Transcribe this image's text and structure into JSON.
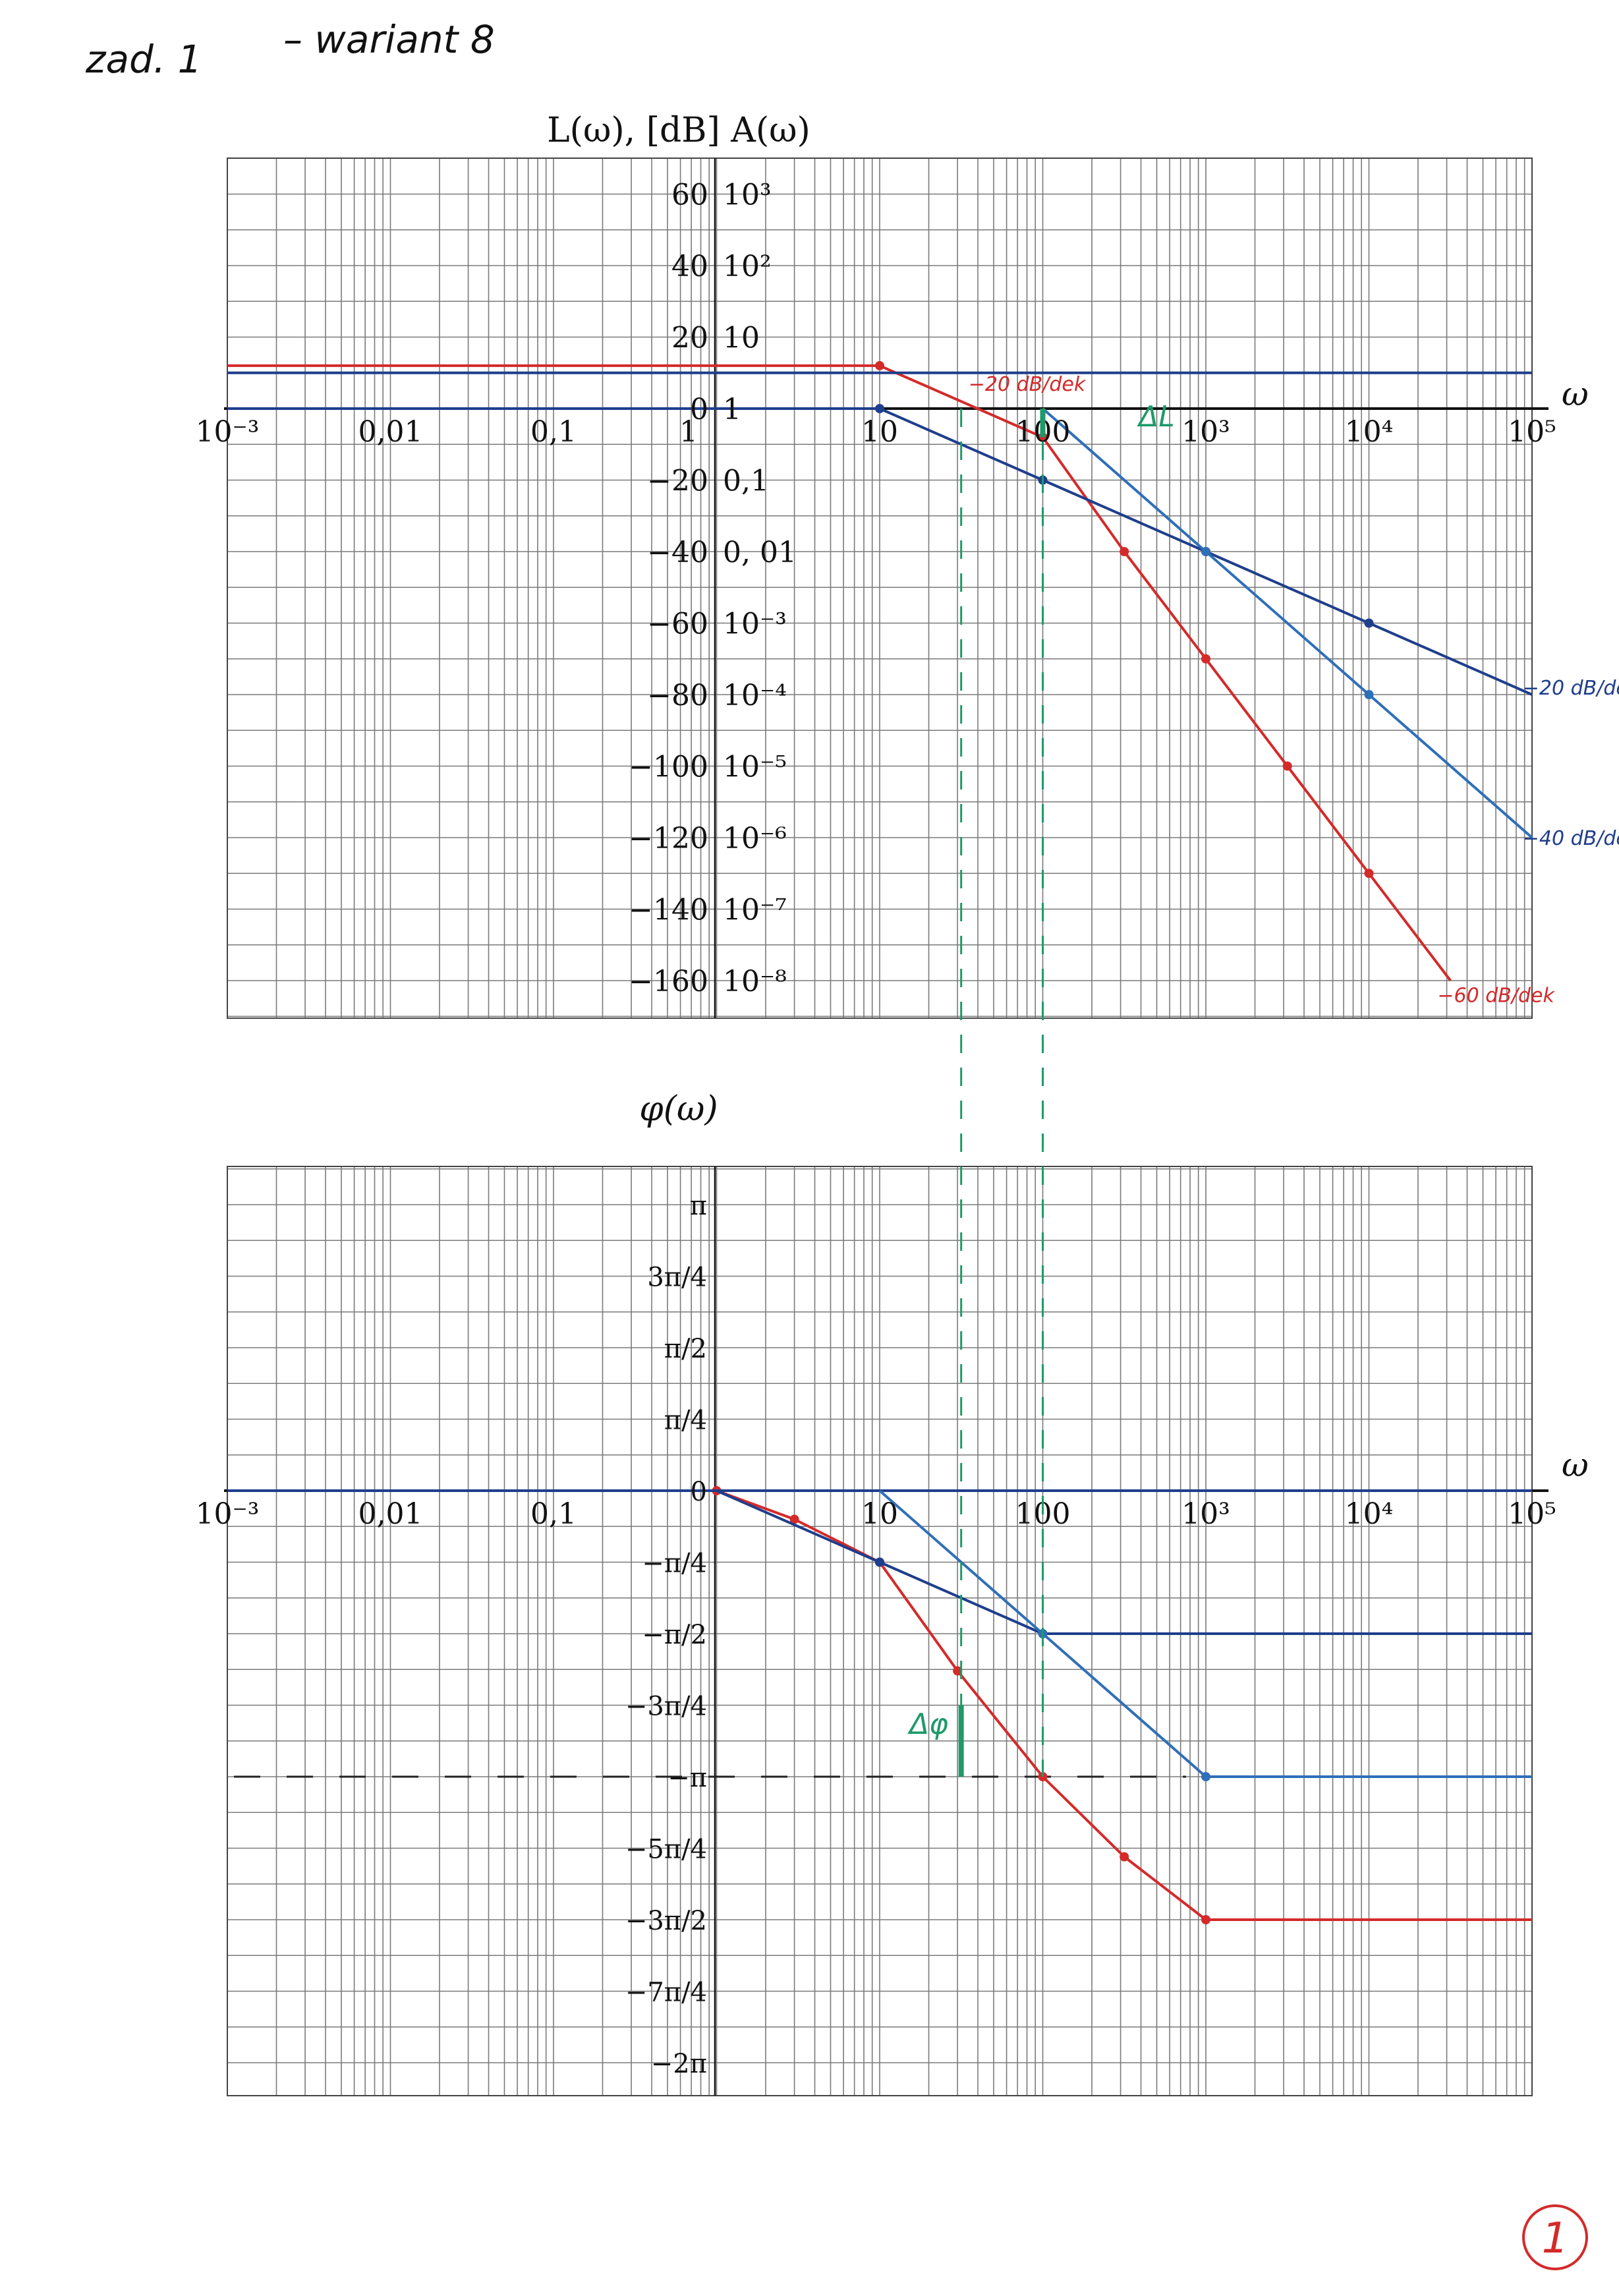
{
  "header": {
    "note_left": "zad. 1",
    "note_right": "– wariant 8",
    "page_number": "1"
  },
  "colors": {
    "red": "#d42a2a",
    "blue": "#1f3e8c",
    "blue_light": "#2f6fb8",
    "green": "#1e9a6a",
    "grid": "#7a7a7a",
    "axis": "#111111"
  },
  "chart_data": [
    {
      "type": "line",
      "title": "L(ω), [dB] A(ω)",
      "xlabel": "ω",
      "x_scale": "log",
      "xlim": [
        0.001,
        100000
      ],
      "ylim": [
        -170,
        70
      ],
      "ylabel_units": "dB",
      "x_tick_labels": [
        "10⁻³",
        "0,01",
        "0,1",
        "1",
        "10",
        "100",
        "10³",
        "10⁴",
        "10⁵"
      ],
      "y_ticks": [
        {
          "dB": 60,
          "label": "60",
          "amp": "10³"
        },
        {
          "dB": 40,
          "label": "40",
          "amp": "10²"
        },
        {
          "dB": 20,
          "label": "20",
          "amp": "10"
        },
        {
          "dB": 0,
          "label": "0",
          "amp": "1"
        },
        {
          "dB": -20,
          "label": "−20",
          "amp": "0,1"
        },
        {
          "dB": -40,
          "label": "−40",
          "amp": "0, 01"
        },
        {
          "dB": -60,
          "label": "−60",
          "amp": "10⁻³"
        },
        {
          "dB": -80,
          "label": "−80",
          "amp": "10⁻⁴"
        },
        {
          "dB": -100,
          "label": "−100",
          "amp": "10⁻⁵"
        },
        {
          "dB": -120,
          "label": "−120",
          "amp": "10⁻⁶"
        },
        {
          "dB": -140,
          "label": "−140",
          "amp": "10⁻⁷"
        },
        {
          "dB": -160,
          "label": "−160",
          "amp": "10⁻⁸"
        }
      ],
      "series": [
        {
          "color": "red",
          "points": [
            [
              0.001,
              12
            ],
            [
              10,
              12
            ],
            [
              100,
              -8
            ],
            [
              316,
              -40
            ],
            [
              1000,
              -70
            ],
            [
              3162,
              -100
            ],
            [
              10000,
              -130
            ],
            [
              31623,
              -160
            ]
          ]
        },
        {
          "color": "blue",
          "points": [
            [
              0.001,
              10
            ],
            [
              100000,
              10
            ]
          ]
        },
        {
          "color": "blue",
          "points": [
            [
              0.001,
              0
            ],
            [
              10,
              0
            ],
            [
              100,
              -20
            ],
            [
              1000,
              -40
            ],
            [
              10000,
              -60
            ],
            [
              100000,
              -80
            ]
          ]
        },
        {
          "color": "blue_light",
          "points": [
            [
              100,
              0
            ],
            [
              1000,
              -40
            ],
            [
              10000,
              -80
            ],
            [
              100000,
              -120
            ]
          ]
        }
      ],
      "annotations": [
        {
          "text": "−20 dB/dek",
          "color": "red",
          "at": [
            80,
            5
          ]
        },
        {
          "text": "ΔL",
          "color": "green",
          "at": [
            500,
            -5
          ]
        },
        {
          "text": "−20 dB/dek",
          "color": "blue",
          "at": [
            200000,
            -80
          ]
        },
        {
          "text": "−40 dB/dek",
          "color": "blue",
          "at": [
            200000,
            -122
          ]
        },
        {
          "text": "−60 dB/dek",
          "color": "red",
          "at": [
            60000,
            -166
          ]
        }
      ]
    },
    {
      "type": "line",
      "title": "φ(ω)",
      "xlabel": "ω",
      "x_scale": "log",
      "xlim": [
        0.001,
        100000
      ],
      "ylim_pi": [
        -2.2,
        1.2
      ],
      "x_tick_labels": [
        "10⁻³",
        "0,01",
        "0,1",
        "10",
        "100",
        "10³",
        "10⁴",
        "10⁵"
      ],
      "y_ticks": [
        {
          "value": 1,
          "label": "π"
        },
        {
          "value": 0.75,
          "label": "3π/4"
        },
        {
          "value": 0.5,
          "label": "π/2"
        },
        {
          "value": 0.25,
          "label": "π/4"
        },
        {
          "value": 0,
          "label": "0"
        },
        {
          "value": -0.25,
          "label": "−π/4"
        },
        {
          "value": -0.5,
          "label": "−π/2"
        },
        {
          "value": -0.75,
          "label": "−3π/4"
        },
        {
          "value": -1,
          "label": "−π"
        },
        {
          "value": -1.25,
          "label": "−5π/4"
        },
        {
          "value": -1.5,
          "label": "−3π/2"
        },
        {
          "value": -1.75,
          "label": "−7π/4"
        },
        {
          "value": -2,
          "label": "−2π"
        }
      ],
      "series": [
        {
          "color": "red",
          "points": [
            [
              0.001,
              0.0
            ],
            [
              1,
              0.0
            ],
            [
              3,
              -0.1
            ],
            [
              10,
              -0.25
            ],
            [
              30,
              -0.63
            ],
            [
              100,
              -1.0
            ],
            [
              316,
              -1.28
            ],
            [
              1000,
              -1.5
            ],
            [
              100000,
              -1.5
            ]
          ]
        },
        {
          "color": "blue",
          "points": [
            [
              0.001,
              0.0
            ],
            [
              100000,
              0.0
            ]
          ]
        },
        {
          "color": "blue",
          "points": [
            [
              1,
              0.0
            ],
            [
              10,
              -0.25
            ],
            [
              100,
              -0.5
            ],
            [
              100000,
              -0.5
            ]
          ]
        },
        {
          "color": "blue_light",
          "points": [
            [
              10,
              0.0
            ],
            [
              100,
              -0.5
            ],
            [
              1000,
              -1.0
            ],
            [
              100000,
              -1.0
            ]
          ]
        }
      ],
      "annotations": [
        {
          "text": "Δφ",
          "color": "green",
          "at": [
            20,
            -0.85
          ]
        }
      ]
    }
  ]
}
